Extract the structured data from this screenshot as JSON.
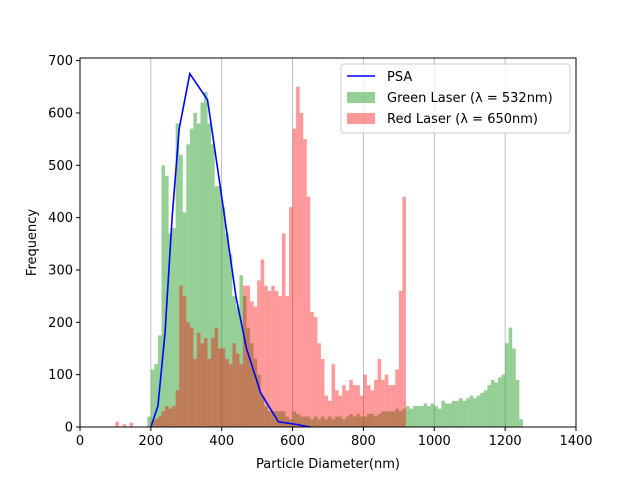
{
  "chart_data": {
    "type": "bar",
    "title": "",
    "xlabel": "Particle Diameter(nm)",
    "ylabel": "Frequency",
    "xlim": [
      0,
      1400
    ],
    "ylim": [
      0,
      705
    ],
    "xticks": [
      0,
      200,
      400,
      600,
      800,
      1000,
      1200,
      1400
    ],
    "yticks": [
      0,
      100,
      200,
      300,
      400,
      500,
      600,
      700
    ],
    "grid": "vertical lines only",
    "legend_position": "top-right",
    "bin_width": 10,
    "series": [
      {
        "name": "Green Laser (λ = 532nm)",
        "kind": "histogram",
        "color": "#2ca02c",
        "opacity": 0.5,
        "bins_start": [
          190,
          200,
          210,
          220,
          230,
          240,
          250,
          260,
          270,
          280,
          290,
          300,
          310,
          320,
          330,
          340,
          350,
          360,
          370,
          380,
          390,
          400,
          410,
          420,
          430,
          440,
          450,
          460,
          470,
          480,
          490,
          500,
          510,
          520,
          530,
          540,
          550,
          560,
          570,
          580,
          590,
          600,
          610,
          620,
          630,
          640,
          650,
          660,
          670,
          680,
          690,
          700,
          710,
          720,
          730,
          740,
          750,
          760,
          770,
          780,
          790,
          800,
          810,
          820,
          830,
          840,
          850,
          860,
          870,
          880,
          890,
          900,
          910,
          920,
          930,
          940,
          950,
          960,
          970,
          980,
          990,
          1000,
          1010,
          1020,
          1030,
          1040,
          1050,
          1060,
          1070,
          1080,
          1090,
          1100,
          1110,
          1120,
          1130,
          1140,
          1150,
          1160,
          1170,
          1180,
          1190,
          1200,
          1210,
          1220,
          1230,
          1240
        ],
        "counts": [
          20,
          110,
          120,
          175,
          500,
          480,
          370,
          380,
          580,
          520,
          410,
          540,
          570,
          600,
          580,
          620,
          640,
          580,
          540,
          460,
          460,
          420,
          370,
          330,
          250,
          230,
          290,
          250,
          190,
          160,
          130,
          100,
          60,
          40,
          30,
          30,
          30,
          30,
          30,
          20,
          15,
          30,
          25,
          20,
          20,
          20,
          15,
          20,
          15,
          20,
          15,
          20,
          15,
          20,
          20,
          15,
          20,
          25,
          20,
          25,
          20,
          20,
          25,
          25,
          20,
          25,
          30,
          30,
          30,
          30,
          35,
          30,
          35,
          40,
          35,
          40,
          40,
          40,
          45,
          40,
          45,
          40,
          35,
          50,
          45,
          45,
          50,
          50,
          55,
          50,
          55,
          60,
          55,
          60,
          65,
          70,
          80,
          90,
          85,
          95,
          100,
          160,
          190,
          150,
          90,
          15
        ]
      },
      {
        "name": "Red Laser (λ = 650nm)",
        "kind": "histogram",
        "color": "#ff0000",
        "opacity": 0.4,
        "bins_start": [
          100,
          120,
          140,
          200,
          210,
          220,
          230,
          240,
          250,
          260,
          270,
          280,
          290,
          300,
          310,
          320,
          330,
          340,
          350,
          360,
          370,
          380,
          390,
          400,
          410,
          420,
          430,
          440,
          450,
          460,
          470,
          480,
          490,
          500,
          510,
          520,
          530,
          540,
          550,
          560,
          570,
          580,
          590,
          600,
          610,
          620,
          630,
          640,
          650,
          660,
          670,
          680,
          690,
          700,
          710,
          720,
          730,
          740,
          750,
          760,
          770,
          780,
          790,
          800,
          810,
          820,
          830,
          840,
          850,
          860,
          870,
          880,
          890,
          900,
          910
        ],
        "counts": [
          10,
          5,
          8,
          10,
          15,
          20,
          30,
          40,
          35,
          40,
          70,
          270,
          250,
          200,
          190,
          130,
          180,
          160,
          170,
          130,
          170,
          190,
          150,
          150,
          130,
          120,
          160,
          140,
          120,
          270,
          270,
          240,
          230,
          280,
          320,
          270,
          260,
          270,
          260,
          250,
          370,
          250,
          420,
          570,
          650,
          600,
          550,
          440,
          220,
          210,
          160,
          130,
          60,
          50,
          120,
          70,
          60,
          80,
          70,
          90,
          80,
          80,
          60,
          100,
          80,
          70,
          90,
          130,
          90,
          100,
          80,
          80,
          110,
          260,
          440
        ]
      },
      {
        "name": "PSA",
        "kind": "line",
        "color": "#0000ff",
        "x": [
          200,
          220,
          240,
          260,
          280,
          310,
          360,
          400,
          440,
          470,
          510,
          560,
          610,
          650
        ],
        "y": [
          0,
          40,
          180,
          400,
          570,
          675,
          625,
          440,
          250,
          150,
          65,
          10,
          5,
          0
        ]
      }
    ]
  }
}
